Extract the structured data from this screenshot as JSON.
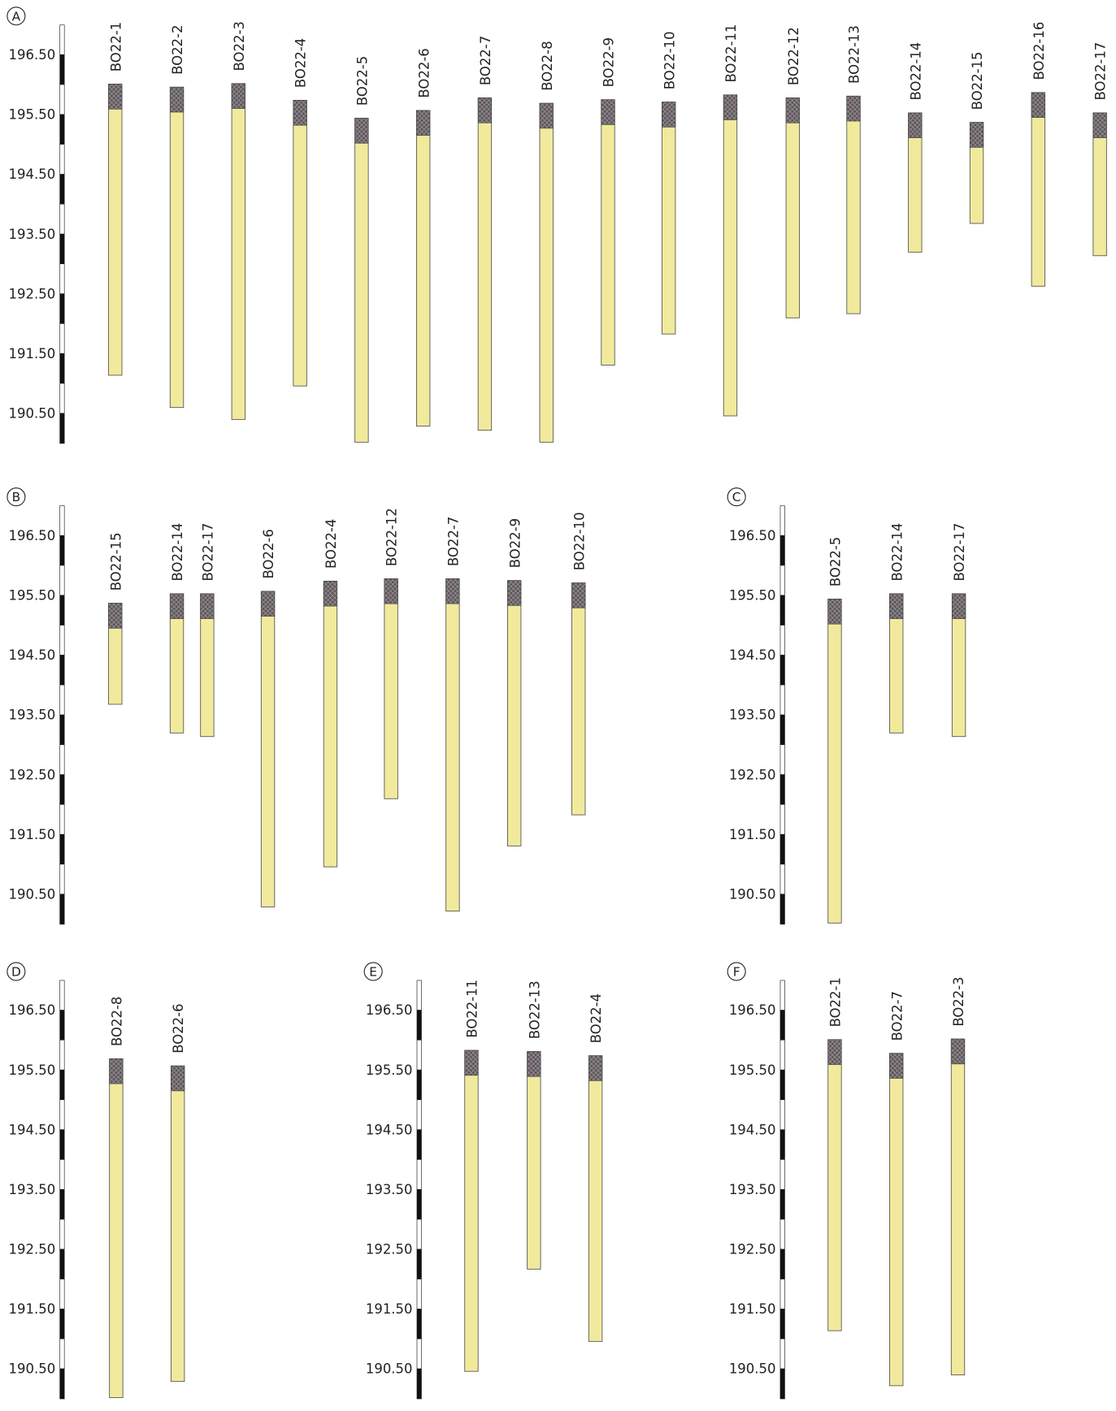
{
  "chart_data": [
    {
      "type": "borehole",
      "panel": "A",
      "ylim": [
        190,
        197
      ],
      "yticks": [
        {
          "value": 196.5,
          "label": "196.50"
        },
        {
          "value": 195.5,
          "label": "195.50"
        },
        {
          "value": 194.5,
          "label": "194.50"
        },
        {
          "value": 193.5,
          "label": "193.50"
        },
        {
          "value": 192.5,
          "label": "192.50"
        },
        {
          "value": 191.5,
          "label": "191.50"
        },
        {
          "value": 190.5,
          "label": "190.50"
        }
      ],
      "boreholes": [
        {
          "name": "BO22-1",
          "top": 196.01,
          "bottom": 191.14
        },
        {
          "name": "BO22-2",
          "top": 195.96,
          "bottom": 190.6
        },
        {
          "name": "BO22-3",
          "top": 196.02,
          "bottom": 190.4
        },
        {
          "name": "BO22-4",
          "top": 195.74,
          "bottom": 190.96
        },
        {
          "name": "BO22-5",
          "top": 195.44,
          "bottom": 190.02
        },
        {
          "name": "BO22-6",
          "top": 195.57,
          "bottom": 190.29
        },
        {
          "name": "BO22-7",
          "top": 195.78,
          "bottom": 190.22
        },
        {
          "name": "BO22-8",
          "top": 195.69,
          "bottom": 190.02
        },
        {
          "name": "BO22-9",
          "top": 195.75,
          "bottom": 191.31
        },
        {
          "name": "BO22-10",
          "top": 195.71,
          "bottom": 191.83
        },
        {
          "name": "BO22-11",
          "top": 195.83,
          "bottom": 190.46
        },
        {
          "name": "BO22-12",
          "top": 195.78,
          "bottom": 192.1
        },
        {
          "name": "BO22-13",
          "top": 195.81,
          "bottom": 192.17
        },
        {
          "name": "BO22-14",
          "top": 195.53,
          "bottom": 193.2
        },
        {
          "name": "BO22-15",
          "top": 195.37,
          "bottom": 193.68
        },
        {
          "name": "BO22-16",
          "top": 195.87,
          "bottom": 192.63
        },
        {
          "name": "BO22-17",
          "top": 195.53,
          "bottom": 193.14
        }
      ]
    },
    {
      "type": "borehole",
      "panel": "B",
      "ylim": [
        190,
        197
      ],
      "yticks": [
        {
          "value": 196.5,
          "label": "196.50"
        },
        {
          "value": 195.5,
          "label": "195.50"
        },
        {
          "value": 194.5,
          "label": "194.50"
        },
        {
          "value": 193.5,
          "label": "193.50"
        },
        {
          "value": 192.5,
          "label": "192.50"
        },
        {
          "value": 191.5,
          "label": "191.50"
        },
        {
          "value": 190.5,
          "label": "190.50"
        }
      ],
      "boreholes": [
        {
          "name": "BO22-15",
          "top": 195.37,
          "bottom": 193.68
        },
        {
          "name": "BO22-14",
          "top": 195.53,
          "bottom": 193.2
        },
        {
          "name": "BO22-17",
          "top": 195.53,
          "bottom": 193.14
        },
        {
          "name": "BO22-6",
          "top": 195.57,
          "bottom": 190.29
        },
        {
          "name": "BO22-4",
          "top": 195.74,
          "bottom": 190.96
        },
        {
          "name": "BO22-12",
          "top": 195.78,
          "bottom": 192.1
        },
        {
          "name": "BO22-7",
          "top": 195.78,
          "bottom": 190.22
        },
        {
          "name": "BO22-9",
          "top": 195.75,
          "bottom": 191.31
        },
        {
          "name": "BO22-10",
          "top": 195.71,
          "bottom": 191.83
        }
      ]
    },
    {
      "type": "borehole",
      "panel": "C",
      "ylim": [
        190,
        197
      ],
      "yticks": [
        {
          "value": 196.5,
          "label": "196.50"
        },
        {
          "value": 195.5,
          "label": "195.50"
        },
        {
          "value": 194.5,
          "label": "194.50"
        },
        {
          "value": 193.5,
          "label": "193.50"
        },
        {
          "value": 192.5,
          "label": "192.50"
        },
        {
          "value": 191.5,
          "label": "191.50"
        },
        {
          "value": 190.5,
          "label": "190.50"
        }
      ],
      "boreholes": [
        {
          "name": "BO22-5",
          "top": 195.44,
          "bottom": 190.02
        },
        {
          "name": "BO22-14",
          "top": 195.53,
          "bottom": 193.2
        },
        {
          "name": "BO22-17",
          "top": 195.53,
          "bottom": 193.14
        }
      ]
    },
    {
      "type": "borehole",
      "panel": "D",
      "ylim": [
        190,
        197
      ],
      "yticks": [
        {
          "value": 196.5,
          "label": "196.50"
        },
        {
          "value": 195.5,
          "label": "195.50"
        },
        {
          "value": 194.5,
          "label": "194.50"
        },
        {
          "value": 193.5,
          "label": "193.50"
        },
        {
          "value": 192.5,
          "label": "192.50"
        },
        {
          "value": 191.5,
          "label": "191.50"
        },
        {
          "value": 190.5,
          "label": "190.50"
        }
      ],
      "boreholes": [
        {
          "name": "BO22-8",
          "top": 195.69,
          "bottom": 190.02
        },
        {
          "name": "BO22-6",
          "top": 195.57,
          "bottom": 190.29
        }
      ]
    },
    {
      "type": "borehole",
      "panel": "E",
      "ylim": [
        190,
        197
      ],
      "yticks": [
        {
          "value": 196.5,
          "label": "196.50"
        },
        {
          "value": 195.5,
          "label": "195.50"
        },
        {
          "value": 194.5,
          "label": "194.50"
        },
        {
          "value": 193.5,
          "label": "193.50"
        },
        {
          "value": 192.5,
          "label": "192.50"
        },
        {
          "value": 191.5,
          "label": "191.50"
        },
        {
          "value": 190.5,
          "label": "190.50"
        }
      ],
      "boreholes": [
        {
          "name": "BO22-11",
          "top": 195.83,
          "bottom": 190.46
        },
        {
          "name": "BO22-13",
          "top": 195.81,
          "bottom": 192.17
        },
        {
          "name": "BO22-4",
          "top": 195.74,
          "bottom": 190.96
        }
      ]
    },
    {
      "type": "borehole",
      "panel": "F",
      "ylim": [
        190,
        197
      ],
      "yticks": [
        {
          "value": 196.5,
          "label": "196.50"
        },
        {
          "value": 195.5,
          "label": "195.50"
        },
        {
          "value": 194.5,
          "label": "194.50"
        },
        {
          "value": 193.5,
          "label": "193.50"
        },
        {
          "value": 192.5,
          "label": "192.50"
        },
        {
          "value": 191.5,
          "label": "191.50"
        },
        {
          "value": 190.5,
          "label": "190.50"
        }
      ],
      "boreholes": [
        {
          "name": "BO22-1",
          "top": 196.01,
          "bottom": 191.14
        },
        {
          "name": "BO22-7",
          "top": 195.78,
          "bottom": 190.22
        },
        {
          "name": "BO22-3",
          "top": 196.02,
          "bottom": 190.4
        }
      ]
    }
  ]
}
